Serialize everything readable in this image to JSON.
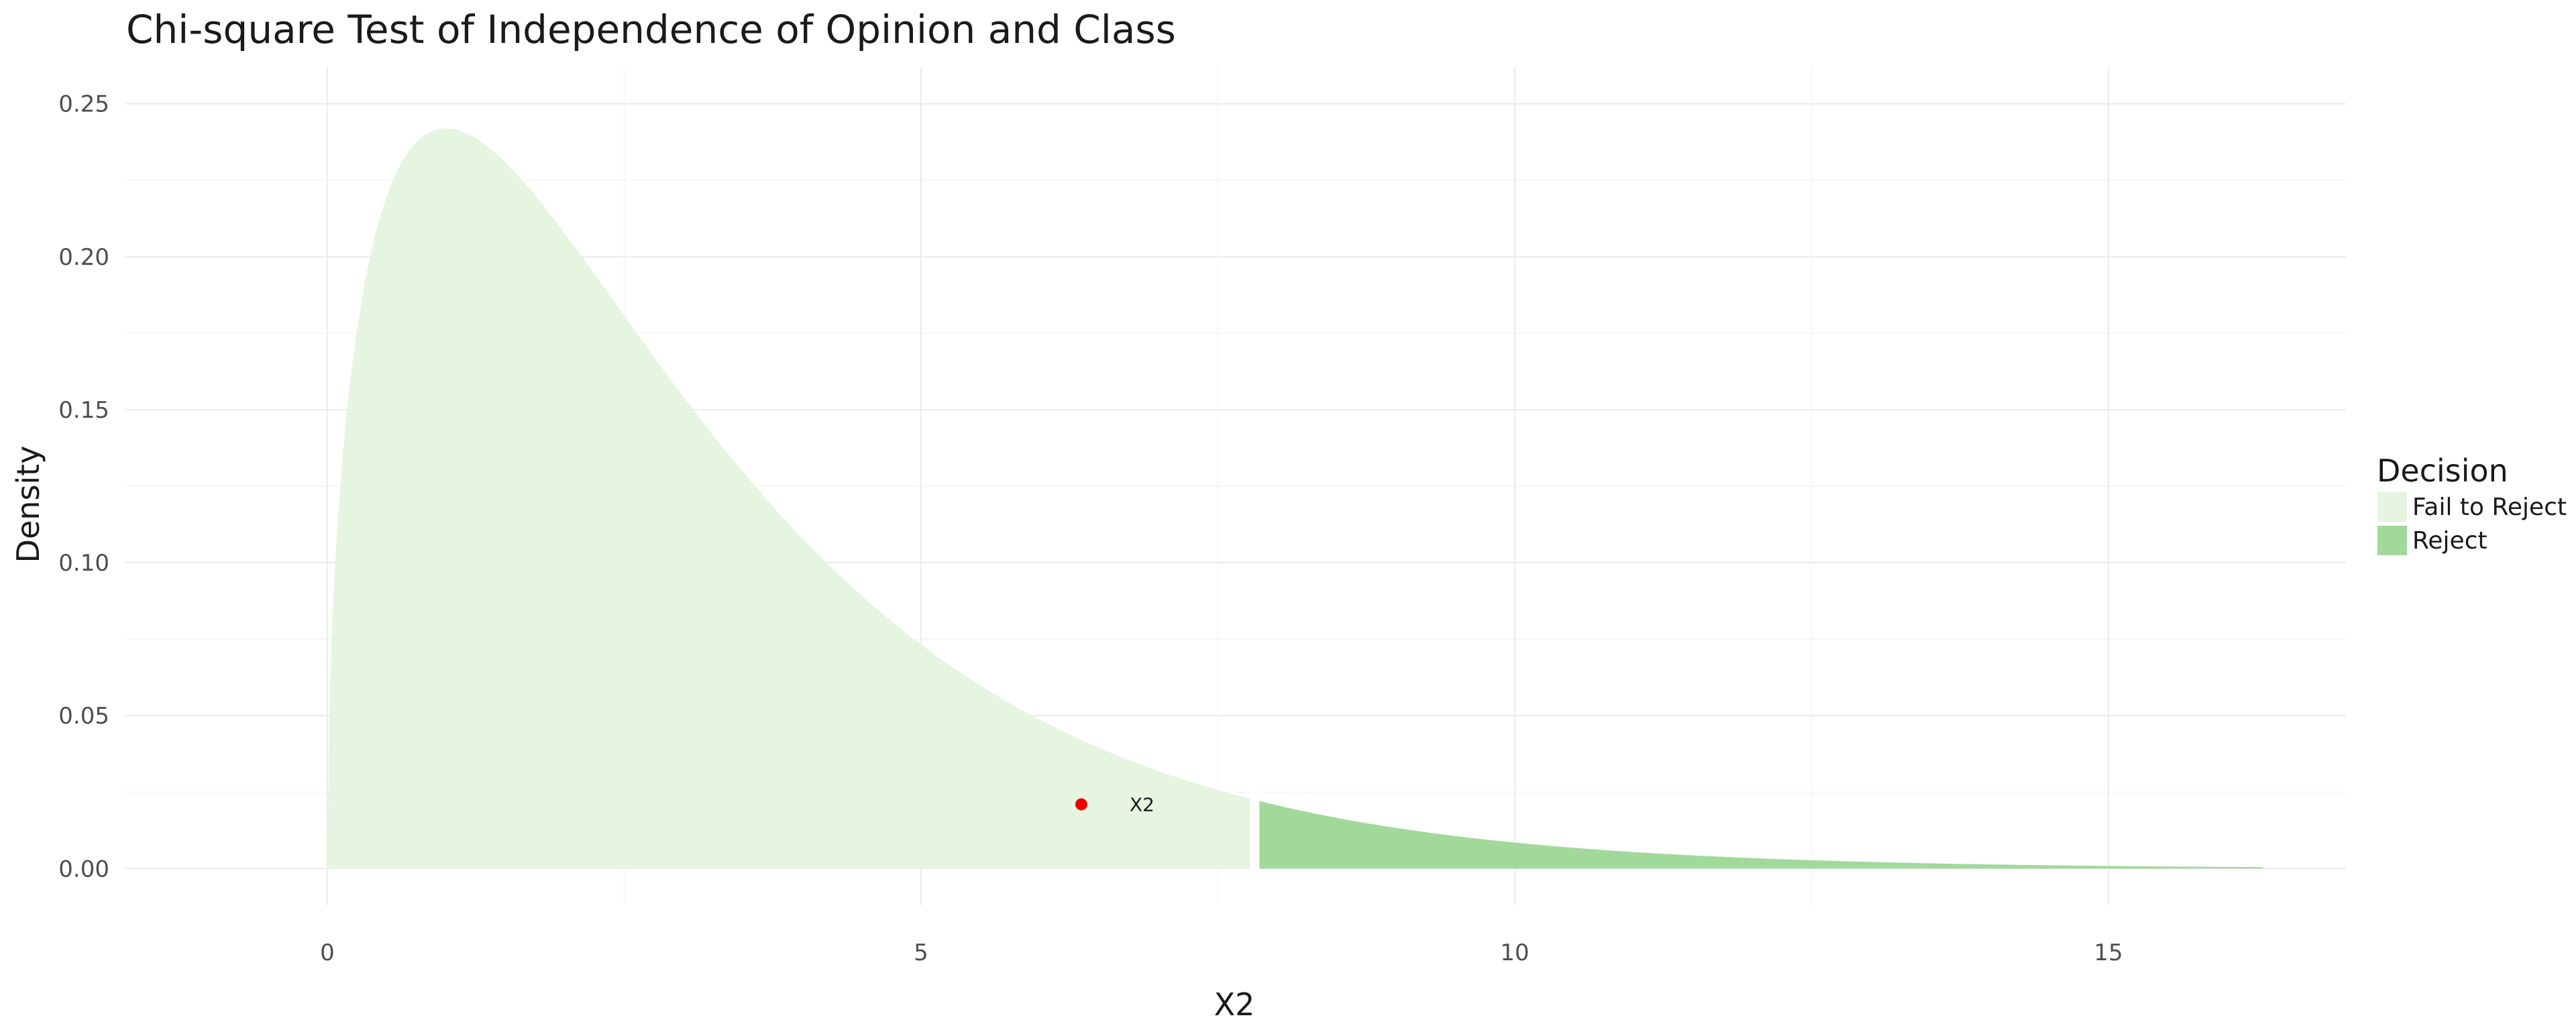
{
  "chart_data": {
    "type": "area",
    "title": "Chi-square Test of Independence of Opinion and Class",
    "xlabel": "X2",
    "ylabel": "Density",
    "distribution": "chi-square",
    "degrees_of_freedom": 3,
    "critical_value": 7.81,
    "xlim": [
      0,
      16.3
    ],
    "ylim": [
      0,
      0.25
    ],
    "x_ticks": [
      0,
      5,
      10,
      15
    ],
    "x_tick_labels": [
      "0",
      "5",
      "10",
      "15"
    ],
    "y_ticks": [
      0,
      0.05,
      0.1,
      0.15,
      0.2,
      0.25
    ],
    "y_tick_labels": [
      "0.00",
      "0.05",
      "0.10",
      "0.15",
      "0.20",
      "0.25"
    ],
    "grid": true,
    "legend": {
      "title": "Decision",
      "position": "right",
      "entries": [
        {
          "label": "Fail to Reject",
          "color": "#e5f5e0"
        },
        {
          "label": "Reject",
          "color": "#a1d99b"
        }
      ]
    },
    "series": [
      {
        "name": "Fail to Reject",
        "x_range": [
          0,
          7.81
        ],
        "color": "#e5f5e0"
      },
      {
        "name": "Reject",
        "x_range": [
          7.81,
          16.3
        ],
        "color": "#a1d99b"
      }
    ],
    "annotation": {
      "label": "X2",
      "x": 6.35,
      "y": 0.021,
      "color": "#ee0000"
    }
  }
}
